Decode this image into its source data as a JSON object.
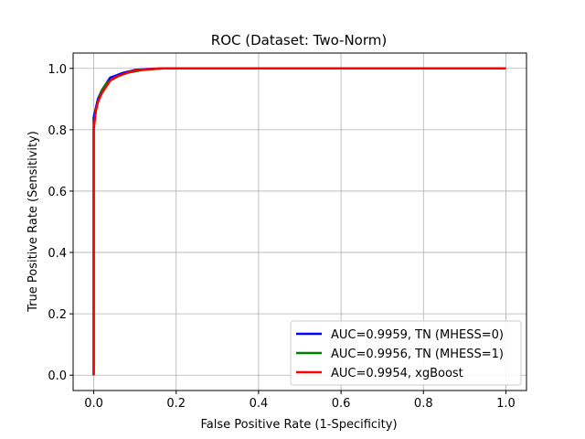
{
  "chart_data": {
    "type": "line",
    "title": "ROC (Dataset: Two-Norm)",
    "xlabel": "False Positive Rate (1-Specificity)",
    "ylabel": "True Positive Rate (Sensitivity)",
    "xlim": [
      -0.05,
      1.05
    ],
    "ylim": [
      -0.05,
      1.05
    ],
    "xticks": [
      "0.0",
      "0.2",
      "0.4",
      "0.6",
      "0.8",
      "1.0"
    ],
    "yticks": [
      "0.0",
      "0.2",
      "0.4",
      "0.6",
      "0.8",
      "1.0"
    ],
    "grid": true,
    "legend_position": "lower-right",
    "series": [
      {
        "name": "AUC=0.9959, TN (MHESS=0)",
        "color": "#0000ff",
        "x": [
          0.0,
          0.0,
          0.0,
          0.0,
          0.005,
          0.01,
          0.02,
          0.03,
          0.04,
          0.05,
          0.07,
          0.1,
          0.13,
          0.16,
          0.2,
          1.0
        ],
        "y": [
          0.0,
          0.77,
          0.8,
          0.84,
          0.87,
          0.9,
          0.93,
          0.95,
          0.97,
          0.975,
          0.985,
          0.995,
          0.998,
          1.0,
          1.0,
          1.0
        ]
      },
      {
        "name": "AUC=0.9956, TN (MHESS=1)",
        "color": "#008000",
        "x": [
          0.0,
          0.0,
          0.0,
          0.005,
          0.01,
          0.015,
          0.02,
          0.03,
          0.04,
          0.06,
          0.08,
          0.1,
          0.12,
          0.15,
          0.17,
          0.2,
          1.0
        ],
        "y": [
          0.0,
          0.77,
          0.81,
          0.86,
          0.89,
          0.91,
          0.93,
          0.95,
          0.96,
          0.975,
          0.985,
          0.99,
          0.995,
          0.998,
          1.0,
          1.0,
          1.0
        ]
      },
      {
        "name": "AUC=0.9954, xgBoost",
        "color": "#ff0000",
        "x": [
          0.0,
          0.0,
          0.0,
          0.005,
          0.01,
          0.02,
          0.03,
          0.04,
          0.05,
          0.07,
          0.09,
          0.11,
          0.14,
          0.17,
          0.2,
          1.0
        ],
        "y": [
          0.0,
          0.77,
          0.8,
          0.86,
          0.89,
          0.92,
          0.94,
          0.96,
          0.97,
          0.98,
          0.99,
          0.995,
          0.998,
          1.0,
          1.0,
          1.0
        ]
      }
    ]
  }
}
